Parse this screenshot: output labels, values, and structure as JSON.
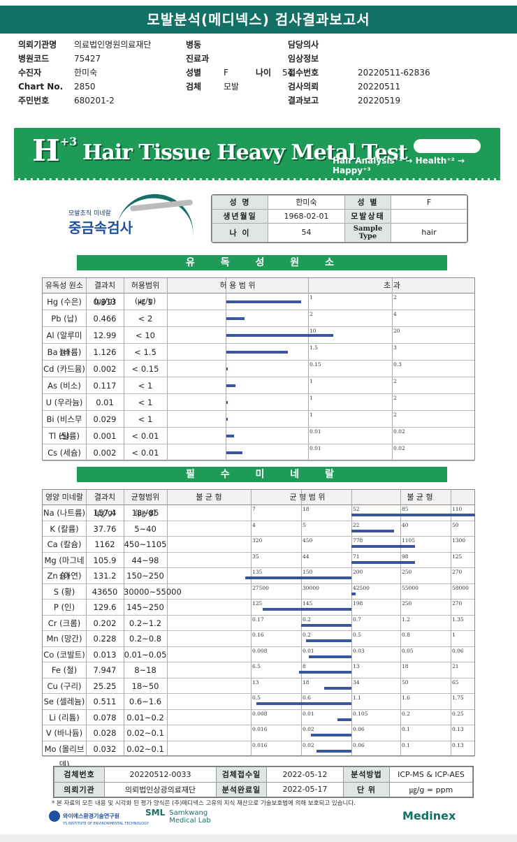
{
  "report_title": "모발분석(메디넥스) 검사결과보고서",
  "header": [
    {
      "label": "의뢰기관명",
      "value": "의료법인명원의료재단",
      "label2": "병동",
      "value2": "",
      "label3": "담당의사",
      "value3": ""
    },
    {
      "label": "병원코드",
      "value": "75427",
      "label2": "진료과",
      "value2": "",
      "label3": "임상정보",
      "value3": ""
    },
    {
      "label": "수진자",
      "value": "한미숙",
      "label2": "성별",
      "value2": "F",
      "label2b": "나이",
      "value2b": "54",
      "label3": "접수번호",
      "value3": "20220511-62836"
    },
    {
      "label": "Chart No.",
      "value": "2850",
      "label2": "검체",
      "value2": "모발",
      "label3": "검사의뢰",
      "value3": "20220511"
    },
    {
      "label": "주민번호",
      "value": "680201-2",
      "label2": "",
      "value2": "",
      "label3": "결과보고",
      "value3": "20220519"
    }
  ],
  "banner": {
    "logo": "H",
    "logo_sup": "+3",
    "title": "Hair Tissue Heavy Metal Test",
    "tagline": "Hair Analysis⁺¹ → Health⁺² → Happy⁺³"
  },
  "sub_logo": {
    "small": "모발조직 미네랄",
    "big": "중금속검사"
  },
  "patient": {
    "name_label": "성 명",
    "name": "한미숙",
    "sex_label": "성 별",
    "sex": "F",
    "dob_label": "생년월일",
    "dob": "1968-02-01",
    "hair_label": "모발상태",
    "hair": "",
    "age_label": "나 이",
    "age": "54",
    "sample_label": "Sample Type",
    "sample": "hair"
  },
  "toxic": {
    "section_title": "유 독 성 원 소",
    "headers": [
      "유독성 원소",
      "결과치(㎍/g)",
      "허용범위(㎍/g)",
      "허 용 범 위",
      "초 과"
    ],
    "rows": [
      {
        "name": "Hg (수은)",
        "value": "0.913",
        "range": "< 1",
        "limit": 1,
        "t1": "1",
        "t2": "2",
        "v": 0.913
      },
      {
        "name": "Pb (납)",
        "value": "0.466",
        "range": "< 2",
        "limit": 2,
        "t1": "2",
        "t2": "4",
        "v": 0.466
      },
      {
        "name": "Al (알루미늄)",
        "value": "12.99",
        "range": "< 10",
        "limit": 10,
        "t1": "10",
        "t2": "20",
        "v": 12.99
      },
      {
        "name": "Ba (바륨)",
        "value": "1.126",
        "range": "< 1.5",
        "limit": 1.5,
        "t1": "1.5",
        "t2": "3",
        "v": 1.126
      },
      {
        "name": "Cd (카드뮴)",
        "value": "0.002",
        "range": "< 0.15",
        "limit": 0.15,
        "t1": "0.15",
        "t2": "0.3",
        "v": 0.002
      },
      {
        "name": "As (비소)",
        "value": "0.117",
        "range": "< 1",
        "limit": 1,
        "t1": "1",
        "t2": "2",
        "v": 0.117
      },
      {
        "name": "U (우라늄)",
        "value": "0.01",
        "range": "< 1",
        "limit": 1,
        "t1": "1",
        "t2": "2",
        "v": 0.01
      },
      {
        "name": "Bi (비스무스)",
        "value": "0.029",
        "range": "< 1",
        "limit": 1,
        "t1": "1",
        "t2": "2",
        "v": 0.029
      },
      {
        "name": "Tl (탈륨)",
        "value": "0.001",
        "range": "< 0.01",
        "limit": 0.01,
        "t1": "0.01",
        "t2": "0.02",
        "v": 0.001
      },
      {
        "name": "Cs (세슘)",
        "value": "0.002",
        "range": "< 0.01",
        "limit": 0.01,
        "t1": "0.01",
        "t2": "0.02",
        "v": 0.002
      }
    ]
  },
  "minerals": {
    "section_title": "필 수 미 네 랄",
    "headers": [
      "영양 미네랄",
      "결과치(㎍/g)",
      "균형범위(㎍/g)",
      "불 균 형",
      "균 형 범 위",
      "불 균 형"
    ],
    "rows": [
      {
        "name": "Na (나트륨)",
        "value": "157.4",
        "range": "18~85",
        "ticks": [
          "7",
          "18",
          "52",
          "85",
          "110"
        ],
        "v": 157.4
      },
      {
        "name": "K (칼륨)",
        "value": "37.76",
        "range": "5~40",
        "ticks": [
          "4",
          "5",
          "22",
          "40",
          "50"
        ],
        "v": 37.76
      },
      {
        "name": "Ca (칼슘)",
        "value": "1162",
        "range": "450~1105",
        "ticks": [
          "320",
          "450",
          "778",
          "1105",
          "1300"
        ],
        "v": 1162
      },
      {
        "name": "Mg (마그네슘)",
        "value": "105.9",
        "range": "44~98",
        "ticks": [
          "35",
          "44",
          "71",
          "98",
          "125"
        ],
        "v": 105.9
      },
      {
        "name": "Zn (아연)",
        "value": "131.2",
        "range": "150~250",
        "ticks": [
          "135",
          "150",
          "200",
          "250",
          "270"
        ],
        "v": 131.2
      },
      {
        "name": "S (황)",
        "value": "43650",
        "range": "30000~55000",
        "ticks": [
          "27500",
          "30000",
          "42500",
          "55000",
          "58000"
        ],
        "v": 43650
      },
      {
        "name": "P (인)",
        "value": "129.6",
        "range": "145~250",
        "ticks": [
          "125",
          "145",
          "198",
          "250",
          "270"
        ],
        "v": 129.6
      },
      {
        "name": "Cr (크롬)",
        "value": "0.202",
        "range": "0.2~1.2",
        "ticks": [
          "0.17",
          "0.2",
          "0.7",
          "1.2",
          "1.35"
        ],
        "v": 0.202
      },
      {
        "name": "Mn (망간)",
        "value": "0.228",
        "range": "0.2~0.8",
        "ticks": [
          "0.16",
          "0.2",
          "0.5",
          "0.8",
          "1"
        ],
        "v": 0.228
      },
      {
        "name": "Co (코발트)",
        "value": "0.013",
        "range": "0.01~0.05",
        "ticks": [
          "0.008",
          "0.01",
          "0.03",
          "0.05",
          "0.06"
        ],
        "v": 0.013
      },
      {
        "name": "Fe (철)",
        "value": "7.947",
        "range": "8~18",
        "ticks": [
          "6.5",
          "8",
          "13",
          "18",
          "21"
        ],
        "v": 7.947
      },
      {
        "name": "Cu (구리)",
        "value": "25.25",
        "range": "18~50",
        "ticks": [
          "13",
          "18",
          "34",
          "50",
          "65"
        ],
        "v": 25.25
      },
      {
        "name": "Se (셀레늄)",
        "value": "0.511",
        "range": "0.6~1.6",
        "ticks": [
          "0.5",
          "0.6",
          "1.1",
          "1.6",
          "1.75"
        ],
        "v": 0.511
      },
      {
        "name": "Li (리튬)",
        "value": "0.078",
        "range": "0.01~0.2",
        "ticks": [
          "0.008",
          "0.01",
          "0.105",
          "0.2",
          "0.25"
        ],
        "v": 0.078
      },
      {
        "name": "V (바나듐)",
        "value": "0.028",
        "range": "0.02~0.1",
        "ticks": [
          "0.016",
          "0.02",
          "0.06",
          "0.1",
          "0.13"
        ],
        "v": 0.028
      },
      {
        "name": "Mo (몰리브덴)",
        "value": "0.032",
        "range": "0.02~0.1",
        "ticks": [
          "0.016",
          "0.02",
          "0.06",
          "0.1",
          "0.13"
        ],
        "v": 0.032
      }
    ]
  },
  "footer": {
    "sample_no_label": "검체번호",
    "sample_no": "20220512-0033",
    "received_label": "검체접수일",
    "received": "2022-05-12",
    "method_label": "분석방법",
    "method": "ICP-MS & ICP-AES",
    "requester_label": "의뢰기관",
    "requester": "의뢰법인상광의료재단",
    "completed_label": "분석완료일",
    "completed": "2022-05-17",
    "unit_label": "단 위",
    "unit": "㎍/g = ppm",
    "note": "* 본 자료의 모든 내용 및 시각화 된 평가 양식은 (주)메디넥스 고유의 지식 재산으로 기술보호법에 의해 보호되고 있습니다.",
    "brand1": "와이에스환경기술연구원",
    "brand1_sub": "YS INSTITUTE OF ENVIRONMENTAL TECHNOLOGY",
    "brand2_abbr": "SML",
    "brand2a": "Samkwang",
    "brand2b": "Medical Lab",
    "brand3": "Medinex"
  }
}
